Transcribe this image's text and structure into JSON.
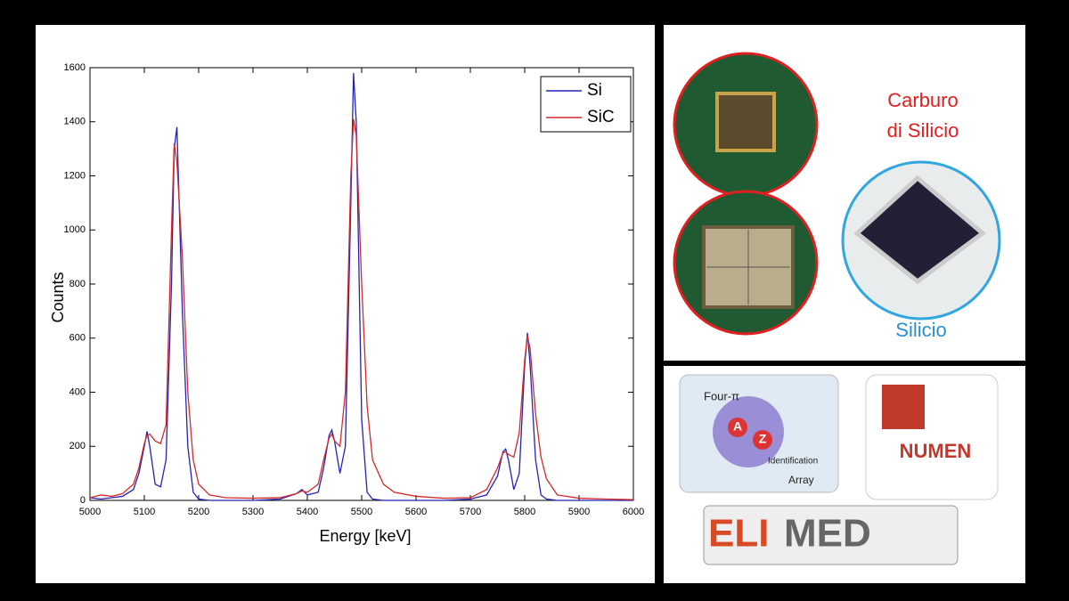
{
  "chart_data": {
    "type": "line",
    "xlabel": "Energy [keV]",
    "ylabel": "Counts",
    "x": [
      5000,
      5020,
      5040,
      5060,
      5080,
      5090,
      5100,
      5105,
      5110,
      5120,
      5130,
      5140,
      5150,
      5155,
      5160,
      5170,
      5180,
      5190,
      5200,
      5220,
      5250,
      5300,
      5350,
      5380,
      5390,
      5400,
      5420,
      5430,
      5440,
      5445,
      5450,
      5460,
      5470,
      5480,
      5485,
      5490,
      5500,
      5510,
      5520,
      5540,
      5560,
      5600,
      5650,
      5700,
      5730,
      5750,
      5760,
      5765,
      5770,
      5780,
      5790,
      5800,
      5805,
      5810,
      5820,
      5830,
      5840,
      5860,
      5900,
      5950,
      6000
    ],
    "series": [
      {
        "name": "Si",
        "color": "#2323b4",
        "values": [
          10,
          5,
          10,
          15,
          40,
          100,
          200,
          255,
          200,
          60,
          50,
          150,
          800,
          1300,
          1380,
          700,
          200,
          30,
          5,
          0,
          0,
          0,
          5,
          25,
          40,
          20,
          30,
          120,
          240,
          260,
          220,
          100,
          200,
          1100,
          1580,
          1400,
          300,
          30,
          5,
          0,
          0,
          0,
          0,
          5,
          20,
          90,
          180,
          190,
          150,
          40,
          100,
          500,
          620,
          500,
          150,
          20,
          5,
          0,
          0,
          0,
          0
        ]
      },
      {
        "name": "SiC",
        "color": "#d42a2a",
        "values": [
          10,
          20,
          15,
          25,
          60,
          120,
          210,
          240,
          245,
          220,
          210,
          280,
          1000,
          1320,
          1250,
          900,
          400,
          150,
          60,
          20,
          10,
          8,
          10,
          25,
          35,
          30,
          60,
          150,
          230,
          245,
          220,
          200,
          400,
          1200,
          1410,
          1350,
          800,
          350,
          150,
          60,
          30,
          15,
          8,
          10,
          40,
          120,
          175,
          180,
          170,
          160,
          250,
          520,
          610,
          560,
          320,
          160,
          80,
          20,
          8,
          5,
          3
        ]
      }
    ],
    "xlim": [
      5000,
      6000
    ],
    "xticks": [
      5000,
      5100,
      5200,
      5300,
      5400,
      5500,
      5600,
      5700,
      5800,
      5900,
      6000
    ],
    "ylim": [
      0,
      1600
    ],
    "yticks": [
      0,
      200,
      400,
      600,
      800,
      1000,
      1200,
      1400,
      1600
    ],
    "grid": false,
    "legend": "upper right"
  },
  "panels": {
    "carburo": [
      "Carburo",
      "di Silicio"
    ],
    "silicio": "Silicio",
    "fazia": {
      "four": "Four-π",
      "a": "A",
      "z": "Z",
      "identification": "Identification",
      "array": "Array"
    },
    "numen": "NUMEN",
    "elimed": [
      "ELI",
      "MED"
    ]
  }
}
